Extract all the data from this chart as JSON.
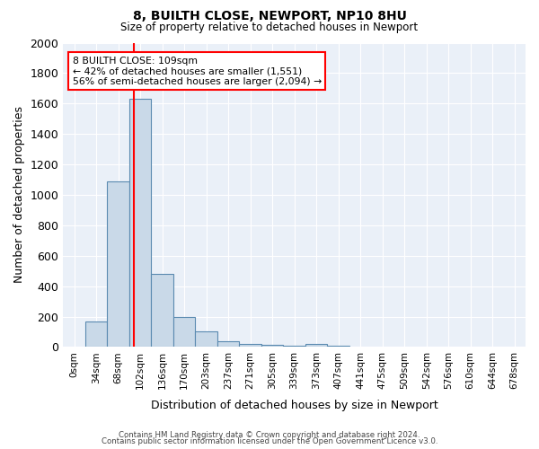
{
  "title1": "8, BUILTH CLOSE, NEWPORT, NP10 8HU",
  "title2": "Size of property relative to detached houses in Newport",
  "xlabel": "Distribution of detached houses by size in Newport",
  "ylabel": "Number of detached properties",
  "bin_labels": [
    "0sqm",
    "34sqm",
    "68sqm",
    "102sqm",
    "136sqm",
    "170sqm",
    "203sqm",
    "237sqm",
    "271sqm",
    "305sqm",
    "339sqm",
    "373sqm",
    "407sqm",
    "441sqm",
    "475sqm",
    "509sqm",
    "542sqm",
    "576sqm",
    "610sqm",
    "644sqm",
    "678sqm"
  ],
  "bar_values": [
    0,
    170,
    1090,
    1630,
    480,
    200,
    100,
    40,
    20,
    15,
    10,
    20,
    10,
    0,
    0,
    0,
    0,
    0,
    0,
    0,
    0
  ],
  "bar_color": "#c9d9e8",
  "bar_edge_color": "#5a8ab0",
  "property_size": 109,
  "bin_width": 34,
  "annotation_text": "8 BUILTH CLOSE: 109sqm\n← 42% of detached houses are smaller (1,551)\n56% of semi-detached houses are larger (2,094) →",
  "ylim": [
    0,
    2000
  ],
  "yticks": [
    0,
    200,
    400,
    600,
    800,
    1000,
    1200,
    1400,
    1600,
    1800,
    2000
  ],
  "background_color": "#eaf0f8",
  "footer1": "Contains HM Land Registry data © Crown copyright and database right 2024.",
  "footer2": "Contains public sector information licensed under the Open Government Licence v3.0."
}
